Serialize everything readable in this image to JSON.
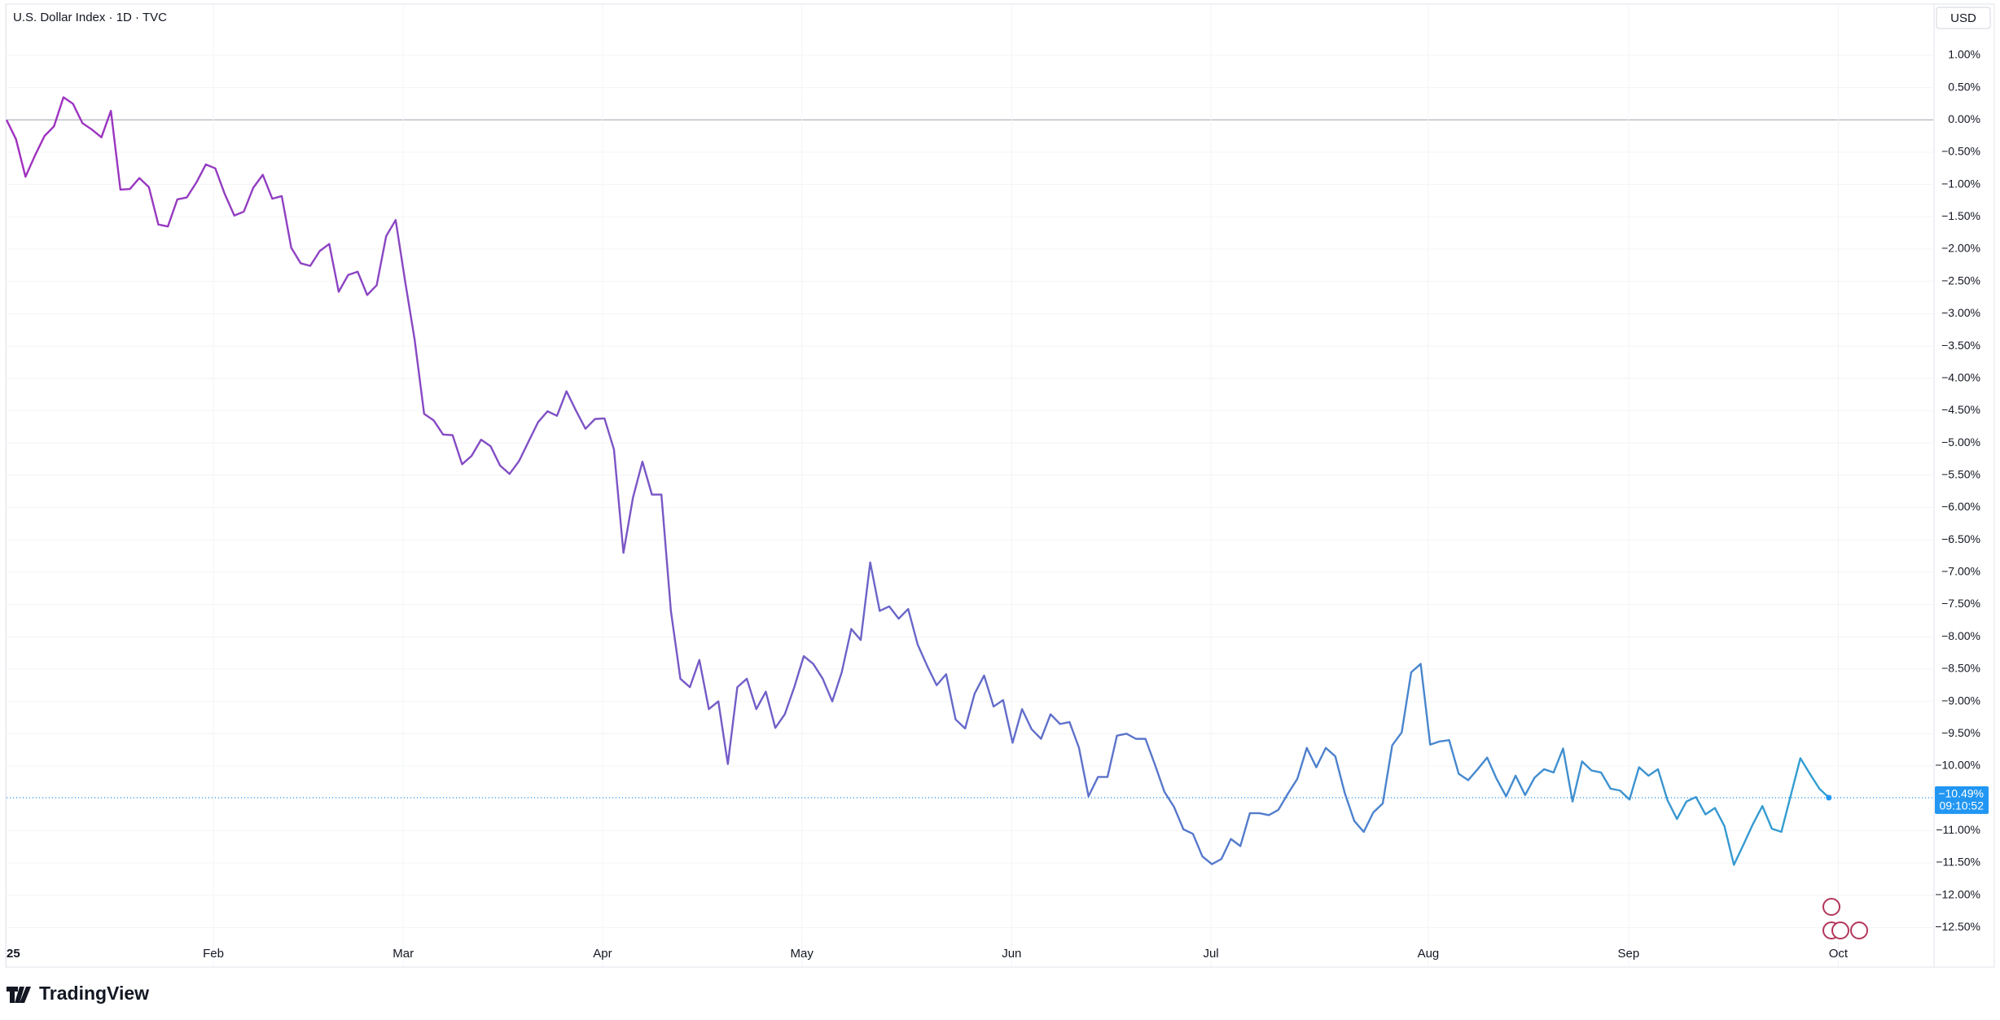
{
  "chart_data": {
    "type": "line",
    "title": "U.S. Dollar Index · 1D · TVC",
    "currency": "USD",
    "series": [
      {
        "name": "U.S. Dollar Index",
        "gradient": [
          "#a12fbf",
          "#2f9fd2"
        ],
        "values": [
          0.0,
          -0.3,
          -0.88,
          -0.55,
          -0.25,
          -0.1,
          0.35,
          0.25,
          -0.05,
          -0.15,
          -0.27,
          0.14,
          -1.08,
          -1.07,
          -0.9,
          -1.04,
          -1.62,
          -1.65,
          -1.23,
          -1.2,
          -0.97,
          -0.69,
          -0.75,
          -1.15,
          -1.48,
          -1.42,
          -1.05,
          -0.85,
          -1.22,
          -1.18,
          -1.98,
          -2.22,
          -2.26,
          -2.03,
          -1.92,
          -2.66,
          -2.4,
          -2.35,
          -2.71,
          -2.56,
          -1.8,
          -1.55,
          -2.5,
          -3.4,
          -4.55,
          -4.65,
          -4.87,
          -4.88,
          -5.33,
          -5.2,
          -4.95,
          -5.05,
          -5.35,
          -5.48,
          -5.28,
          -4.98,
          -4.68,
          -4.51,
          -4.58,
          -4.2,
          -4.5,
          -4.78,
          -4.63,
          -4.62,
          -5.1,
          -6.7,
          -5.85,
          -5.29,
          -5.8,
          -5.8,
          -7.6,
          -8.65,
          -8.78,
          -8.36,
          -9.12,
          -9.0,
          -9.97,
          -8.78,
          -8.65,
          -9.12,
          -8.85,
          -9.41,
          -9.2,
          -8.78,
          -8.3,
          -8.42,
          -8.65,
          -9.0,
          -8.55,
          -7.88,
          -8.05,
          -6.85,
          -7.6,
          -7.53,
          -7.72,
          -7.57,
          -8.12,
          -8.45,
          -8.75,
          -8.58,
          -9.28,
          -9.42,
          -8.88,
          -8.6,
          -9.08,
          -8.98,
          -9.64,
          -9.12,
          -9.43,
          -9.58,
          -9.2,
          -9.35,
          -9.32,
          -9.72,
          -10.47,
          -10.17,
          -10.17,
          -9.53,
          -9.5,
          -9.58,
          -9.58,
          -9.98,
          -10.4,
          -10.63,
          -10.98,
          -11.05,
          -11.4,
          -11.52,
          -11.44,
          -11.13,
          -11.24,
          -10.73,
          -10.73,
          -10.76,
          -10.68,
          -10.43,
          -10.2,
          -9.72,
          -10.02,
          -9.72,
          -9.85,
          -10.42,
          -10.85,
          -11.02,
          -10.72,
          -10.58,
          -9.68,
          -9.48,
          -8.55,
          -8.42,
          -9.67,
          -9.62,
          -9.6,
          -10.12,
          -10.22,
          -10.05,
          -9.87,
          -10.2,
          -10.47,
          -10.15,
          -10.45,
          -10.18,
          -10.05,
          -10.1,
          -9.73,
          -10.55,
          -9.93,
          -10.07,
          -10.1,
          -10.35,
          -10.38,
          -10.52,
          -10.02,
          -10.15,
          -10.05,
          -10.53,
          -10.82,
          -10.55,
          -10.48,
          -10.75,
          -10.65,
          -10.93,
          -11.53,
          -11.22,
          -10.9,
          -10.62,
          -10.97,
          -11.02,
          -10.45,
          -9.88,
          -10.12,
          -10.35,
          -10.49
        ]
      }
    ],
    "last_value": {
      "value": -10.49,
      "label": "−10.49%"
    },
    "countdown": "09:10:52",
    "last_color": "#2196f3",
    "xlim": [
      0,
      203
    ],
    "xticks": [
      {
        "value": 0,
        "label": "25"
      },
      {
        "value": 21.8,
        "label": "Feb"
      },
      {
        "value": 41.8,
        "label": "Mar"
      },
      {
        "value": 62.8,
        "label": "Apr"
      },
      {
        "value": 83.8,
        "label": "May"
      },
      {
        "value": 105.9,
        "label": "Jun"
      },
      {
        "value": 126.9,
        "label": "Jul"
      },
      {
        "value": 149.8,
        "label": "Aug"
      },
      {
        "value": 170.9,
        "label": "Sep"
      },
      {
        "value": 193.0,
        "label": "Oct"
      }
    ],
    "ylim": [
      -13.1,
      1.78
    ],
    "yticks": [
      {
        "value": 1,
        "label": "1.00%"
      },
      {
        "value": 0.5,
        "label": "0.50%"
      },
      {
        "value": 0,
        "label": "0.00%"
      },
      {
        "value": -0.5,
        "label": "−0.50%"
      },
      {
        "value": -1,
        "label": "−1.00%"
      },
      {
        "value": -1.5,
        "label": "−1.50%"
      },
      {
        "value": -2,
        "label": "−2.00%"
      },
      {
        "value": -2.5,
        "label": "−2.50%"
      },
      {
        "value": -3,
        "label": "−3.00%"
      },
      {
        "value": -3.5,
        "label": "−3.50%"
      },
      {
        "value": -4,
        "label": "−4.00%"
      },
      {
        "value": -4.5,
        "label": "−4.50%"
      },
      {
        "value": -5,
        "label": "−5.00%"
      },
      {
        "value": -5.5,
        "label": "−5.50%"
      },
      {
        "value": -6,
        "label": "−6.00%"
      },
      {
        "value": -6.5,
        "label": "−6.50%"
      },
      {
        "value": -7,
        "label": "−7.00%"
      },
      {
        "value": -7.5,
        "label": "−7.50%"
      },
      {
        "value": -8,
        "label": "−8.00%"
      },
      {
        "value": -8.5,
        "label": "−8.50%"
      },
      {
        "value": -9,
        "label": "−9.00%"
      },
      {
        "value": -9.5,
        "label": "−9.50%"
      },
      {
        "value": -10,
        "label": "−10.00%"
      },
      {
        "value": -10.5,
        "label": "−10.50%"
      },
      {
        "value": -11,
        "label": "−11.00%"
      },
      {
        "value": -11.5,
        "label": "−11.50%"
      },
      {
        "value": -12,
        "label": "−12.00%"
      },
      {
        "value": -12.5,
        "label": "−12.50%"
      }
    ],
    "grid": true
  },
  "brand": "TradingView"
}
